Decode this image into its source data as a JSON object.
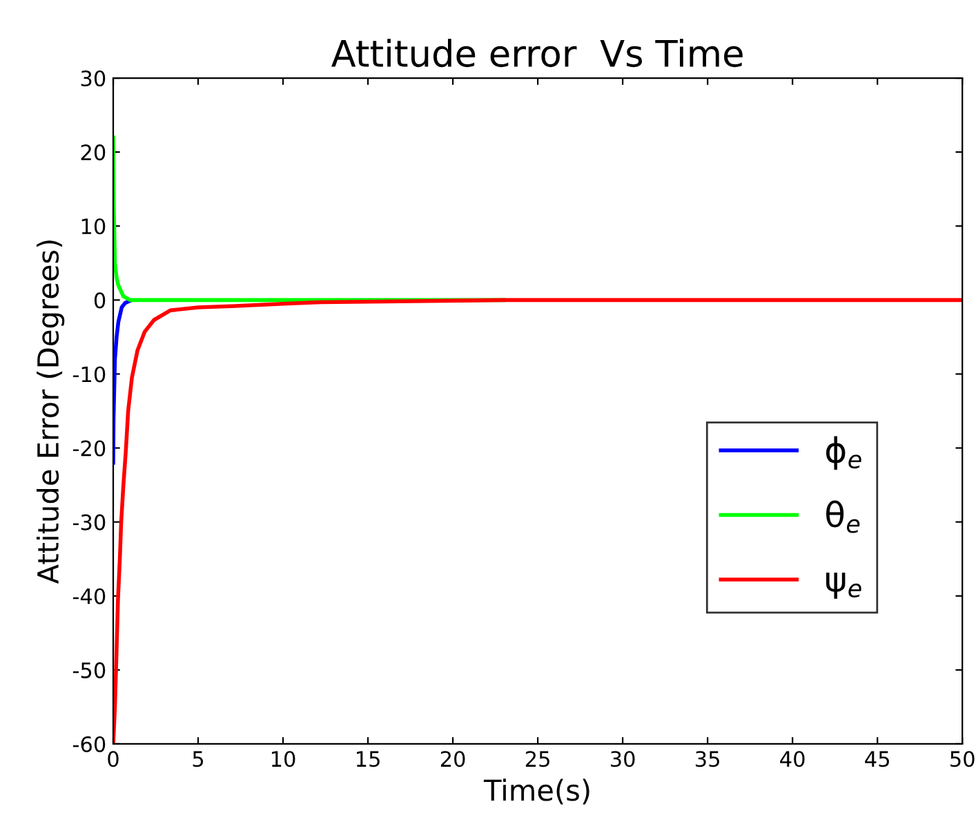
{
  "chart_data": {
    "type": "line",
    "title": "Attitude error  Vs Time",
    "xlabel": "Time(s)",
    "ylabel": "Attitude Error (Degrees)",
    "xlim": [
      0,
      50
    ],
    "ylim": [
      -60,
      30
    ],
    "xticks": [
      0,
      5,
      10,
      15,
      20,
      25,
      30,
      35,
      40,
      45,
      50
    ],
    "yticks": [
      -60,
      -50,
      -40,
      -30,
      -20,
      -10,
      0,
      10,
      20,
      30
    ],
    "grid": false,
    "legend": "right",
    "marker": "none",
    "line_style": "solid",
    "series": [
      {
        "name": "ϕ$_{e}$",
        "color": "#0000ff",
        "x": [
          0,
          0.02,
          0.1,
          0.2,
          0.3,
          0.5,
          0.7,
          1
        ],
        "values": [
          -22,
          -16,
          -8,
          -5,
          -3,
          -1,
          -0.4,
          -0.1
        ]
      },
      {
        "name": "θ$_{e}$",
        "color": "#00ff00",
        "x": [
          0,
          0.03,
          0.1,
          0.2,
          0.3,
          0.6,
          1,
          23
        ],
        "values": [
          22,
          13,
          5,
          3,
          2,
          0.5,
          0,
          0
        ]
      },
      {
        "name": "ψ$_{e}$",
        "color": "#ff0000",
        "x": [
          0,
          0.1,
          0.19,
          0.28,
          0.39,
          0.47,
          0.6,
          0.74,
          0.88,
          1.1,
          1.43,
          1.85,
          2.4,
          3.36,
          5,
          7.2,
          10,
          12.2,
          16,
          23,
          50
        ],
        "values": [
          -60,
          -55,
          -48,
          -40.5,
          -35,
          -30,
          -25,
          -20.5,
          -15,
          -10.5,
          -6.8,
          -4.3,
          -2.7,
          -1.4,
          -1,
          -0.8,
          -0.5,
          -0.3,
          -0.2,
          0,
          0
        ]
      }
    ]
  }
}
